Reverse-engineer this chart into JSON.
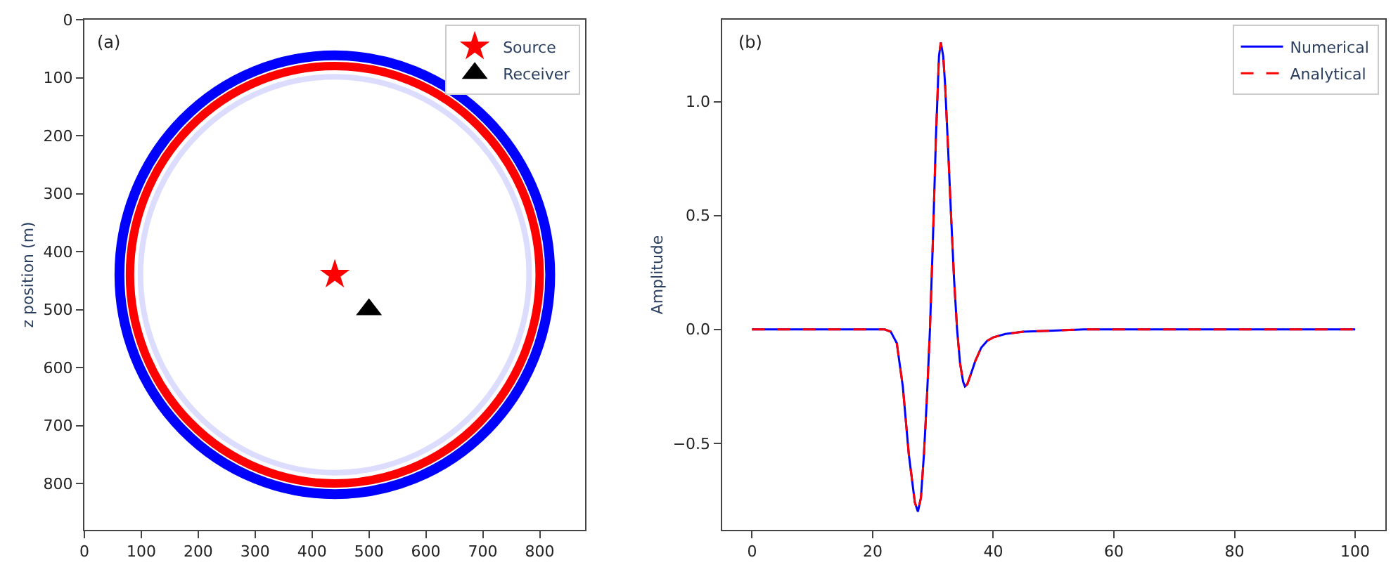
{
  "chart_data": [
    {
      "type": "scatter",
      "ylabel": "z position (m)",
      "annotations": [
        "(a)"
      ],
      "xlim": [
        0,
        880
      ],
      "ylim": [
        880,
        0
      ],
      "xticks": [
        0,
        100,
        200,
        300,
        400,
        500,
        600,
        700,
        800
      ],
      "yticks": [
        0,
        100,
        200,
        300,
        400,
        500,
        600,
        700,
        800
      ],
      "grid": false,
      "legend": "top right",
      "series": [
        {
          "name": "Source",
          "type": "scatter",
          "marker": "star",
          "color": "#ff0000",
          "x": [
            440
          ],
          "values": [
            440
          ]
        },
        {
          "name": "Receiver",
          "type": "scatter",
          "marker": "triangle",
          "color": "#000000",
          "x": [
            500
          ],
          "values": [
            500
          ]
        }
      ]
    },
    {
      "type": "line",
      "ylabel": "Amplitude",
      "annotations": [
        "(b)"
      ],
      "xlim": [
        -5,
        105
      ],
      "ylim": [
        -0.88,
        1.36
      ],
      "xticks": [
        0,
        20,
        40,
        60,
        80,
        100
      ],
      "yticks": [
        {
          "value": -0.5,
          "label": "−0.5"
        },
        {
          "value": 0,
          "label": "0.0"
        },
        {
          "value": 0.5,
          "label": "0.5"
        },
        {
          "value": 1,
          "label": "1.0"
        }
      ],
      "grid": false,
      "legend": "top right",
      "x": [
        0,
        10,
        20,
        22,
        23,
        24,
        25,
        26,
        27,
        27.5,
        28,
        28.5,
        29,
        29.5,
        30,
        30.5,
        31,
        31.3,
        31.7,
        32,
        32.5,
        33,
        33.5,
        34,
        34.5,
        35,
        35.3,
        35.7,
        36.5,
        37,
        38,
        39,
        40,
        42,
        45,
        50,
        55,
        60,
        80,
        100
      ],
      "series": [
        {
          "name": "Numerical",
          "color": "#0000ff",
          "line_style": "solid",
          "values": [
            0,
            0,
            0,
            0,
            -0.01,
            -0.06,
            -0.25,
            -0.55,
            -0.76,
            -0.8,
            -0.74,
            -0.55,
            -0.3,
            0,
            0.4,
            0.85,
            1.2,
            1.26,
            1.2,
            1.08,
            0.8,
            0.5,
            0.22,
            0,
            -0.15,
            -0.23,
            -0.25,
            -0.24,
            -0.18,
            -0.14,
            -0.08,
            -0.05,
            -0.035,
            -0.02,
            -0.01,
            -0.005,
            0,
            0,
            0,
            0
          ]
        },
        {
          "name": "Analytical",
          "color": "#ff0000",
          "line_style": "dashed",
          "values": [
            0,
            0,
            0,
            0,
            -0.01,
            -0.06,
            -0.25,
            -0.55,
            -0.76,
            -0.8,
            -0.74,
            -0.55,
            -0.3,
            0,
            0.4,
            0.85,
            1.2,
            1.26,
            1.2,
            1.08,
            0.8,
            0.5,
            0.22,
            0,
            -0.15,
            -0.23,
            -0.25,
            -0.24,
            -0.18,
            -0.14,
            -0.08,
            -0.05,
            -0.035,
            -0.02,
            -0.01,
            -0.005,
            0,
            0,
            0,
            0
          ]
        }
      ]
    }
  ]
}
